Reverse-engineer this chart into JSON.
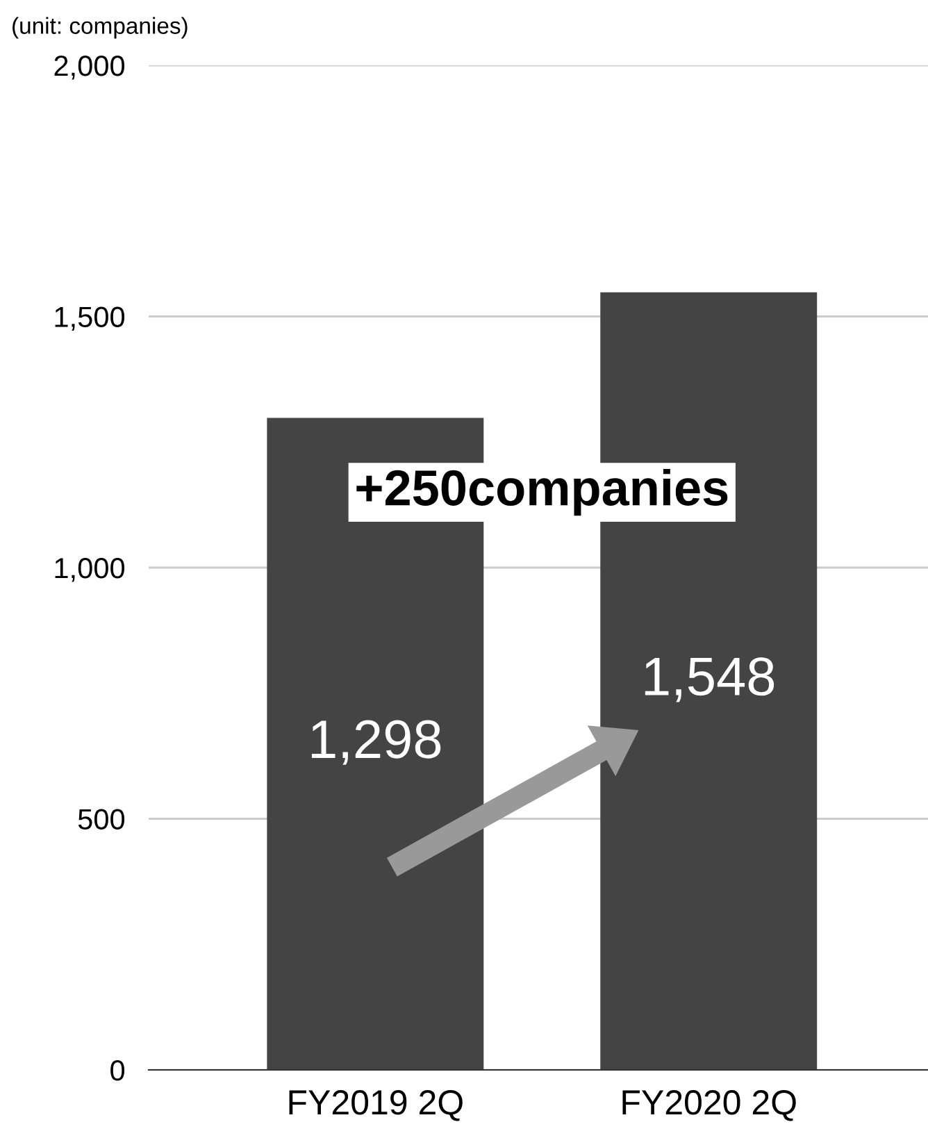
{
  "chart_data": {
    "type": "bar",
    "categories": [
      "FY2019 2Q",
      "FY2020 2Q"
    ],
    "values": [
      1298,
      1548
    ],
    "color": "#444444",
    "ylim": [
      0,
      2000
    ],
    "yticks": [
      0,
      500,
      {
        "value": 1000,
        "label": "1,000"
      },
      {
        "value": 1500,
        "label": "1,500"
      },
      {
        "value": 2000,
        "label": "2,000"
      }
    ],
    "grid": "y",
    "value_labels": [
      "1,298",
      "1,548"
    ],
    "annotations": [
      "(unit: companies)",
      "+250companies"
    ]
  }
}
